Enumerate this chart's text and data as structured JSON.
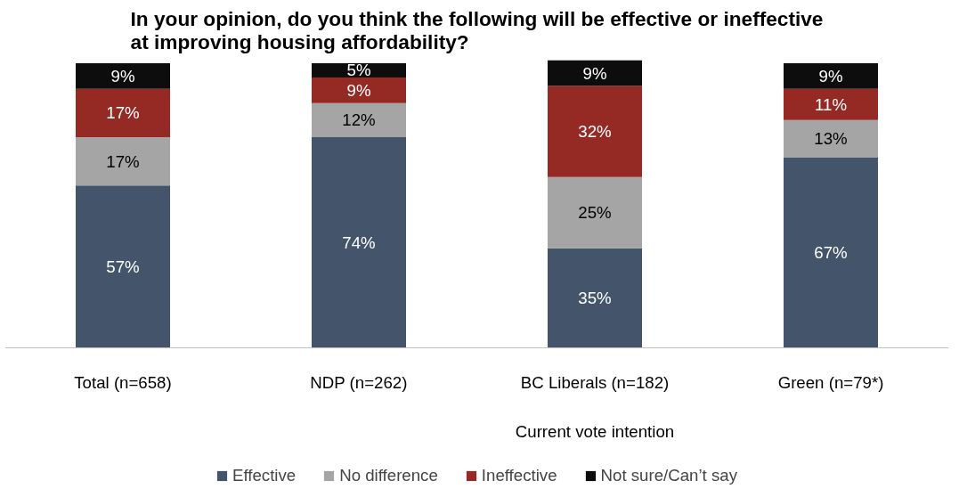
{
  "chart_data": {
    "type": "bar",
    "stacked": true,
    "legend": "bottom",
    "title": "In your opinion, do you think the following will be effective or ineffective\nat improving housing affordability?",
    "categories": [
      "Total (n=658)",
      "NDP (n=262)",
      "BC Liberals (n=182)",
      "Green (n=79*)"
    ],
    "series": [
      {
        "name": "Effective",
        "color": "#44546a",
        "values": [
          57,
          74,
          35,
          67
        ],
        "value_labels": [
          "57%",
          "74%",
          "35%",
          "67%"
        ]
      },
      {
        "name": "No difference",
        "color": "#a5a5a5",
        "values": [
          17,
          12,
          25,
          13
        ],
        "value_labels": [
          "17%",
          "12%",
          "25%",
          "13%"
        ]
      },
      {
        "name": "Ineffective",
        "color": "#952a25",
        "values": [
          17,
          9,
          32,
          11
        ],
        "value_labels": [
          "17%",
          "9%",
          "32%",
          "11%"
        ]
      },
      {
        "name": "Not sure/Can’t say",
        "color": "#0d0d0d",
        "values": [
          9,
          5,
          9,
          9
        ],
        "value_labels": [
          "9%",
          "5%",
          "9%",
          "9%"
        ]
      }
    ],
    "annotations": [
      "Current vote intention"
    ]
  }
}
